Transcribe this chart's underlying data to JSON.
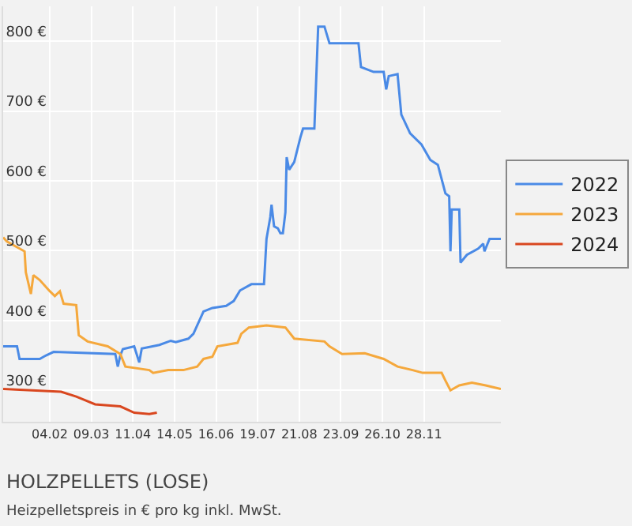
{
  "chart_data": {
    "type": "line",
    "title": "HOLZPELLETS (LOSE)",
    "subtitle": "Heizpelletspreis in € pro kg inkl. MwSt.",
    "xlim": [
      "2021-12-29",
      "2023-01-28"
    ],
    "ylim": [
      255,
      850
    ],
    "xticks": [
      {
        "value": "2022-02-04",
        "label": "04.02"
      },
      {
        "value": "2022-03-09",
        "label": "09.03"
      },
      {
        "value": "2022-04-11",
        "label": "11.04"
      },
      {
        "value": "2022-05-14",
        "label": "14.05"
      },
      {
        "value": "2022-06-16",
        "label": "16.06"
      },
      {
        "value": "2022-07-19",
        "label": "19.07"
      },
      {
        "value": "2022-08-21",
        "label": "21.08"
      },
      {
        "value": "2022-09-23",
        "label": "23.09"
      },
      {
        "value": "2022-10-26",
        "label": "26.10"
      },
      {
        "value": "2022-11-28",
        "label": "28.11"
      }
    ],
    "yticks": [
      {
        "value": 300,
        "label": "300 €"
      },
      {
        "value": 400,
        "label": "400 €"
      },
      {
        "value": 500,
        "label": "500 €"
      },
      {
        "value": 600,
        "label": "600 €"
      },
      {
        "value": 700,
        "label": "700 €"
      },
      {
        "value": 800,
        "label": "800 €"
      }
    ],
    "grid": true,
    "legend": "right",
    "marker": "none",
    "line_style": "solid",
    "series": [
      {
        "name": "2022",
        "color": "#4a8ae6",
        "x": [
          "2021-12-29",
          "2022-01-09",
          "2022-01-11",
          "2022-01-27",
          "2022-02-01",
          "2022-02-07",
          "2022-03-28",
          "2022-03-30",
          "2022-04-01",
          "2022-04-03",
          "2022-04-12",
          "2022-04-16",
          "2022-04-18",
          "2022-05-02",
          "2022-05-11",
          "2022-05-15",
          "2022-05-25",
          "2022-05-29",
          "2022-06-06",
          "2022-06-13",
          "2022-06-24",
          "2022-06-30",
          "2022-07-05",
          "2022-07-14",
          "2022-07-24",
          "2022-07-26",
          "2022-07-29",
          "2022-07-30",
          "2022-08-01",
          "2022-08-04",
          "2022-08-06",
          "2022-08-08",
          "2022-08-10",
          "2022-08-11",
          "2022-08-13",
          "2022-08-17",
          "2022-08-22",
          "2022-08-24",
          "2022-09-02",
          "2022-09-05",
          "2022-09-10",
          "2022-09-14",
          "2022-10-07",
          "2022-10-09",
          "2022-10-19",
          "2022-10-27",
          "2022-10-29",
          "2022-10-31",
          "2022-11-07",
          "2022-11-10",
          "2022-11-17",
          "2022-11-26",
          "2022-12-03",
          "2022-12-09",
          "2022-12-15",
          "2022-12-18",
          "2022-12-19",
          "2022-12-20",
          "2022-12-26",
          "2022-12-27",
          "2023-01-01",
          "2023-01-10",
          "2023-01-14",
          "2023-01-15",
          "2023-01-19",
          "2023-01-28"
        ],
        "values": [
          363,
          363,
          345,
          345,
          350,
          355,
          352,
          334,
          350,
          359,
          363,
          340,
          360,
          365,
          371,
          369,
          374,
          381,
          413,
          418,
          421,
          428,
          443,
          452,
          452,
          517,
          548,
          566,
          535,
          532,
          525,
          525,
          555,
          634,
          616,
          627,
          663,
          675,
          675,
          821,
          821,
          797,
          797,
          763,
          756,
          756,
          731,
          750,
          753,
          695,
          668,
          652,
          630,
          623,
          582,
          578,
          499,
          559,
          559,
          483,
          494,
          503,
          510,
          499,
          517,
          517
        ]
      },
      {
        "name": "2023",
        "color": "#f5a83c",
        "x": [
          "2021-12-29",
          "2022-01-01",
          "2022-01-15",
          "2022-01-16",
          "2022-01-20",
          "2022-01-22",
          "2022-01-27",
          "2022-02-04",
          "2022-02-08",
          "2022-02-12",
          "2022-02-15",
          "2022-02-25",
          "2022-02-27",
          "2022-03-06",
          "2022-03-22",
          "2022-04-01",
          "2022-04-05",
          "2022-04-24",
          "2022-04-27",
          "2022-05-09",
          "2022-05-21",
          "2022-06-01",
          "2022-06-06",
          "2022-06-13",
          "2022-06-17",
          "2022-07-03",
          "2022-07-06",
          "2022-07-12",
          "2022-07-26",
          "2022-08-10",
          "2022-08-17",
          "2022-09-10",
          "2022-09-14",
          "2022-09-24",
          "2022-10-12",
          "2022-10-27",
          "2022-11-07",
          "2022-11-19",
          "2022-11-27",
          "2022-12-12",
          "2022-12-15",
          "2022-12-19",
          "2022-12-26",
          "2023-01-05",
          "2023-01-16",
          "2023-01-28"
        ],
        "values": [
          519,
          513,
          499,
          469,
          438,
          465,
          458,
          442,
          435,
          442,
          424,
          422,
          379,
          370,
          363,
          352,
          334,
          329,
          325,
          329,
          329,
          334,
          345,
          348,
          363,
          368,
          381,
          390,
          393,
          390,
          374,
          370,
          363,
          352,
          353,
          345,
          334,
          329,
          325,
          325,
          314,
          300,
          307,
          311,
          307,
          302
        ]
      },
      {
        "name": "2024",
        "color": "#d9471f",
        "x": [
          "2021-12-29",
          "2022-01-21",
          "2022-02-13",
          "2022-02-25",
          "2022-03-12",
          "2022-04-01",
          "2022-04-12",
          "2022-04-24",
          "2022-04-30"
        ],
        "values": [
          302,
          300,
          298,
          291,
          280,
          277,
          268,
          266,
          268
        ]
      }
    ]
  }
}
